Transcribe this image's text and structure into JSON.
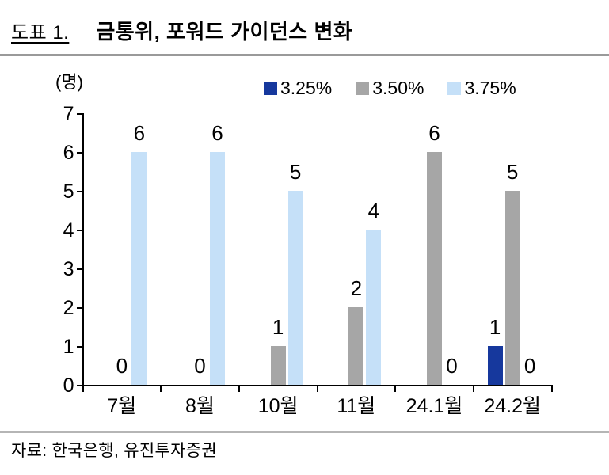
{
  "header": {
    "figure_label": "도표 1.",
    "title": "금통위, 포워드 가이던스 변화"
  },
  "chart_data": {
    "type": "bar",
    "title": "금통위, 포워드 가이던스 변화",
    "unit_label": "(명)",
    "categories": [
      "7월",
      "8월",
      "10월",
      "11월",
      "24.1월",
      "24.2월"
    ],
    "series": [
      {
        "name": "3.25%",
        "color": "#16389d",
        "values": [
          null,
          null,
          null,
          null,
          null,
          1
        ]
      },
      {
        "name": "3.50%",
        "color": "#a6a6a6",
        "values": [
          0,
          0,
          1,
          2,
          6,
          5
        ]
      },
      {
        "name": "3.75%",
        "color": "#c5e0f8",
        "values": [
          6,
          6,
          5,
          4,
          0,
          0
        ]
      }
    ],
    "ylim": [
      0,
      7
    ],
    "yticks": [
      0,
      1,
      2,
      3,
      4,
      5,
      6,
      7
    ],
    "legend_position": "top",
    "grid": false,
    "data_labels_shown": true
  },
  "footer": {
    "source": "자료: 한국은행, 유진투자증권"
  }
}
